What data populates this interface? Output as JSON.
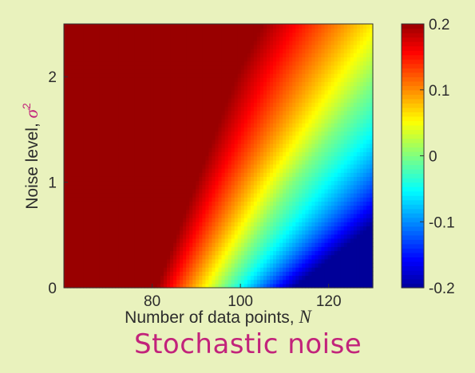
{
  "caption": "Stochastic noise",
  "chart_data": {
    "type": "heatmap",
    "title": "",
    "xlabel": "Number of data points, ",
    "xlabel_symbol": "N",
    "ylabel": "Noise level, ",
    "ylabel_symbol": "σ",
    "ylabel_exp": "2",
    "xlim": [
      60,
      130
    ],
    "ylim": [
      0,
      2.5
    ],
    "x_ticks": [
      80,
      100,
      120
    ],
    "x_tick_labels": [
      "80",
      "100",
      "120"
    ],
    "y_ticks": [
      0,
      1,
      2
    ],
    "y_tick_labels": [
      "0",
      "1",
      "2"
    ],
    "colorbar": {
      "range": [
        -0.2,
        0.2
      ],
      "ticks": [
        0.2,
        0.1,
        0,
        -0.1,
        -0.2
      ],
      "tick_labels": [
        "0.2",
        "0.1",
        "0",
        "-0.1",
        "-0.2"
      ],
      "colormap": "jet"
    },
    "description_of_values": "Value saturates at 0.2 for small N; decreases toward -0.2 at large N and low noise",
    "contours": [
      {
        "value": 0.2,
        "points": [
          [
            81,
            0
          ],
          [
            90,
            1
          ],
          [
            99,
            2
          ],
          [
            105,
            2.5
          ]
        ]
      },
      {
        "value": 0.0,
        "points": [
          [
            96,
            0
          ],
          [
            112,
            1
          ],
          [
            130,
            1.95
          ]
        ]
      },
      {
        "value": -0.2,
        "points": [
          [
            112,
            0
          ],
          [
            130,
            0.6
          ]
        ]
      }
    ]
  },
  "colors": {
    "background": "#e9f2bd",
    "caption": "#c2237b",
    "text": "#2c2c2c"
  }
}
